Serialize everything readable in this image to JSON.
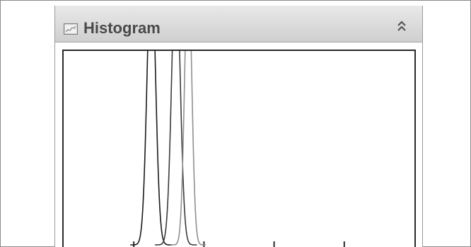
{
  "panel": {
    "title": "Histogram",
    "header_icon": "histogram-chart-icon",
    "collapse_icon": "double-chevron-up-icon"
  },
  "chart_data": {
    "type": "line",
    "title": "",
    "xlabel": "",
    "ylabel": "",
    "grid": false,
    "series": [
      {
        "color": "#1a1a1a",
        "peak_x": 0.25,
        "width": 0.012
      },
      {
        "color": "#3a3a3a",
        "peak_x": 0.32,
        "width": 0.012
      },
      {
        "color": "#8f8f8f",
        "peak_x": 0.355,
        "width": 0.01
      }
    ],
    "x_ticks": 5
  }
}
